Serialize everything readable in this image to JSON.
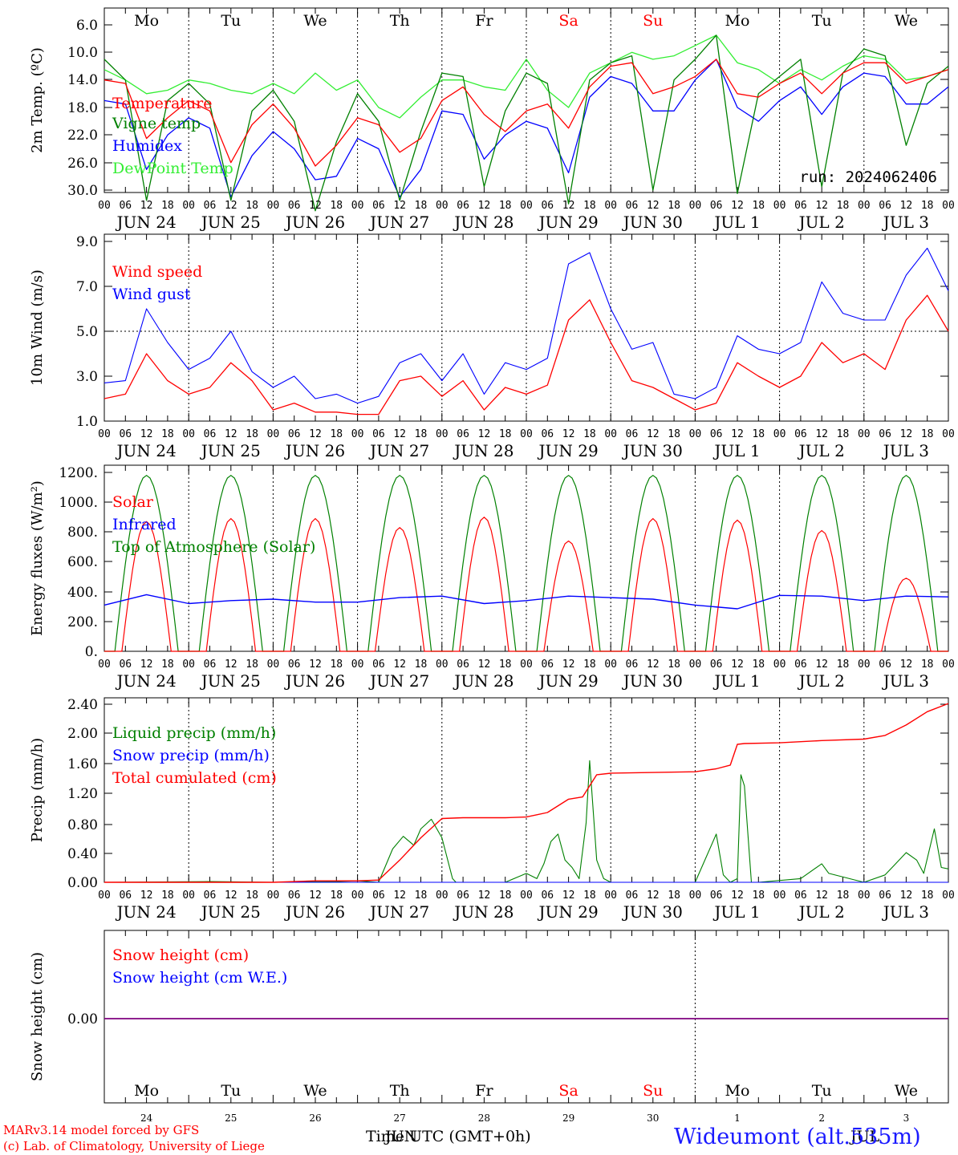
{
  "dates": [
    "JUN 24",
    "JUN 25",
    "JUN 26",
    "JUN 27",
    "JUN 28",
    "JUN 29",
    "JUN 30",
    "JUL  1",
    "JUL  2",
    "JUL  3"
  ],
  "hour_ticks": [
    "00",
    "06",
    "12",
    "18"
  ],
  "weekdays": [
    {
      "label": "Mo",
      "color": "#000000"
    },
    {
      "label": "Tu",
      "color": "#000000"
    },
    {
      "label": "We",
      "color": "#000000"
    },
    {
      "label": "Th",
      "color": "#000000"
    },
    {
      "label": "Fr",
      "color": "#000000"
    },
    {
      "label": "Sa",
      "color": "#ff0000"
    },
    {
      "label": "Su",
      "color": "#ff0000"
    },
    {
      "label": "Mo",
      "color": "#000000"
    },
    {
      "label": "Tu",
      "color": "#000000"
    },
    {
      "label": "We",
      "color": "#000000"
    }
  ],
  "bottom_day_numbers": [
    "24",
    "25",
    "26",
    "27",
    "28",
    "29",
    "30",
    "1",
    "2",
    "3"
  ],
  "run_label": "run: 2024062406",
  "footer": {
    "model": "MARv3.14 model forced by GFS",
    "lab": "(c) Lab. of Climatology, University of Liege",
    "time_axis": "Time UTC (GMT+0h)",
    "month_overlap": "JUN",
    "month_overlap2": "JUL",
    "station": "Wideumont (alt.535m)"
  },
  "chart_data": [
    {
      "type": "line",
      "ylabel": "2m Temp. (ºC)",
      "yticks": [
        "6.0",
        "10.0",
        "14.0",
        "18.0",
        "22.0",
        "26.0",
        "30.0"
      ],
      "ylim": [
        6,
        32.5
      ],
      "x_unit": "hours since JUN 24 00 UTC",
      "series": [
        {
          "name": "Temperature",
          "color": "#ff0000",
          "x": [
            0,
            6,
            12,
            18,
            24,
            30,
            36,
            42,
            48,
            54,
            60,
            66,
            72,
            78,
            84,
            90,
            96,
            102,
            108,
            114,
            120,
            126,
            132,
            138,
            144,
            150,
            156,
            162,
            168,
            174,
            180,
            186,
            192,
            198,
            204,
            210,
            216,
            222,
            228,
            234,
            240
          ],
          "y": [
            14.0,
            14.5,
            22.5,
            19.5,
            17.0,
            18.5,
            26.0,
            20.5,
            17.5,
            21.0,
            26.5,
            23.5,
            19.5,
            20.5,
            24.5,
            22.5,
            17.0,
            15.0,
            19.0,
            21.5,
            18.5,
            17.5,
            21.0,
            15.0,
            12.0,
            11.5,
            16.0,
            15.0,
            13.5,
            11.0,
            16.0,
            16.5,
            14.5,
            13.0,
            16.0,
            13.0,
            11.5,
            11.5,
            14.5,
            13.5,
            12.5
          ]
        },
        {
          "name": "Vigne temp",
          "color": "#008000",
          "x": [
            0,
            6,
            12,
            18,
            24,
            30,
            36,
            42,
            48,
            54,
            60,
            66,
            72,
            78,
            84,
            90,
            96,
            102,
            108,
            114,
            120,
            126,
            132,
            138,
            144,
            150,
            156,
            162,
            168,
            174,
            180,
            186,
            192,
            198,
            204,
            210,
            216,
            222,
            228,
            234,
            240
          ],
          "y": [
            11.0,
            14.0,
            31.5,
            17.0,
            14.5,
            17.5,
            31.5,
            18.5,
            15.5,
            20.0,
            33.0,
            23.0,
            16.0,
            20.0,
            31.5,
            21.5,
            13.0,
            13.5,
            29.5,
            18.5,
            13.0,
            14.5,
            32.0,
            14.0,
            11.5,
            10.5,
            30.0,
            14.0,
            11.0,
            7.5,
            30.5,
            16.0,
            13.5,
            11.0,
            29.5,
            13.0,
            9.5,
            10.5,
            23.5,
            14.5,
            12.0
          ]
        },
        {
          "name": "Humidex",
          "color": "#0000ff",
          "x": [
            0,
            6,
            12,
            18,
            24,
            30,
            36,
            42,
            48,
            54,
            60,
            66,
            72,
            78,
            84,
            90,
            96,
            102,
            108,
            114,
            120,
            126,
            132,
            138,
            144,
            150,
            156,
            162,
            168,
            174,
            180,
            186,
            192,
            198,
            204,
            210,
            216,
            222,
            228,
            234,
            240
          ],
          "y": [
            17.0,
            17.5,
            27.0,
            22.0,
            19.5,
            21.0,
            31.0,
            25.0,
            21.5,
            24.0,
            28.5,
            28.0,
            22.5,
            24.0,
            31.0,
            27.0,
            18.5,
            19.0,
            25.5,
            22.0,
            20.0,
            21.0,
            27.5,
            16.5,
            13.5,
            14.5,
            18.5,
            18.5,
            14.0,
            11.0,
            18.0,
            20.0,
            17.0,
            15.0,
            19.0,
            15.0,
            13.0,
            13.5,
            17.5,
            17.5,
            15.0
          ]
        },
        {
          "name": "DewPoint Temp",
          "color": "#33ee33",
          "x": [
            0,
            6,
            12,
            18,
            24,
            30,
            36,
            42,
            48,
            54,
            60,
            66,
            72,
            78,
            84,
            90,
            96,
            102,
            108,
            114,
            120,
            126,
            132,
            138,
            144,
            150,
            156,
            162,
            168,
            174,
            180,
            186,
            192,
            198,
            204,
            210,
            216,
            222,
            228,
            234,
            240
          ],
          "y": [
            12.5,
            14.0,
            16.0,
            15.5,
            14.0,
            14.5,
            15.5,
            16.0,
            14.5,
            16.0,
            13.0,
            15.5,
            14.0,
            18.0,
            19.5,
            16.5,
            14.0,
            14.0,
            15.0,
            15.5,
            11.0,
            15.5,
            18.0,
            13.0,
            11.5,
            10.0,
            11.0,
            10.5,
            9.0,
            7.5,
            11.5,
            12.5,
            14.5,
            12.5,
            14.0,
            12.0,
            10.5,
            11.0,
            14.0,
            13.5,
            12.5
          ]
        }
      ]
    },
    {
      "type": "line",
      "ylabel": "10m Wind (m/s)",
      "yticks": [
        "1.0",
        "3.0",
        "5.0",
        "7.0",
        "9.0"
      ],
      "ylim": [
        1,
        9.1
      ],
      "dashed_reference": 5.0,
      "x_unit": "hours since JUN 24 00 UTC",
      "series": [
        {
          "name": "Wind speed",
          "color": "#ff0000",
          "x": [
            0,
            6,
            12,
            18,
            24,
            30,
            36,
            42,
            48,
            54,
            60,
            66,
            72,
            78,
            84,
            90,
            96,
            102,
            108,
            114,
            120,
            126,
            132,
            138,
            144,
            150,
            156,
            162,
            168,
            174,
            180,
            186,
            192,
            198,
            204,
            210,
            216,
            222,
            228,
            234,
            240
          ],
          "y": [
            2.0,
            2.2,
            4.0,
            2.8,
            2.2,
            2.5,
            3.6,
            2.8,
            1.5,
            1.8,
            1.4,
            1.4,
            1.3,
            1.3,
            2.8,
            3.0,
            2.1,
            2.8,
            1.5,
            2.5,
            2.2,
            2.6,
            5.5,
            6.4,
            4.5,
            2.8,
            2.5,
            2.0,
            1.5,
            1.8,
            3.6,
            3.0,
            2.5,
            3.0,
            4.5,
            3.6,
            4.0,
            3.3,
            5.5,
            6.6,
            5.0
          ]
        },
        {
          "name": "Wind gust",
          "color": "#0000ff",
          "x": [
            0,
            6,
            12,
            18,
            24,
            30,
            36,
            42,
            48,
            54,
            60,
            66,
            72,
            78,
            84,
            90,
            96,
            102,
            108,
            114,
            120,
            126,
            132,
            138,
            144,
            150,
            156,
            162,
            168,
            174,
            180,
            186,
            192,
            198,
            204,
            210,
            216,
            222,
            228,
            234,
            240
          ],
          "y": [
            2.7,
            2.8,
            6.0,
            4.5,
            3.3,
            3.8,
            5.0,
            3.2,
            2.5,
            3.0,
            2.0,
            2.2,
            1.8,
            2.1,
            3.6,
            4.0,
            2.8,
            4.0,
            2.2,
            3.6,
            3.3,
            3.8,
            8.0,
            8.5,
            6.0,
            4.2,
            4.5,
            2.2,
            2.0,
            2.5,
            4.8,
            4.2,
            4.0,
            4.5,
            7.2,
            5.8,
            5.5,
            5.5,
            7.5,
            8.7,
            6.8
          ]
        }
      ]
    },
    {
      "type": "line",
      "ylabel": "Energy fluxes (W/m²)",
      "yticks": [
        "0.",
        "200.",
        "400.",
        "600.",
        "800.",
        "1000.",
        "1200."
      ],
      "ylim": [
        0,
        1200
      ],
      "x_unit": "hours since JUN 24 00 UTC",
      "series": [
        {
          "name": "Solar",
          "color": "#ff0000",
          "daily_peak_wm2": [
            870,
            890,
            890,
            830,
            900,
            740,
            890,
            880,
            810,
            490
          ]
        },
        {
          "name": "Infrared",
          "color": "#0000ff",
          "x": [
            0,
            12,
            24,
            36,
            48,
            60,
            72,
            84,
            96,
            108,
            120,
            132,
            144,
            156,
            168,
            180,
            192,
            204,
            216,
            228,
            240
          ],
          "y": [
            310,
            380,
            320,
            340,
            350,
            330,
            330,
            360,
            370,
            320,
            340,
            370,
            360,
            350,
            310,
            285,
            375,
            370,
            340,
            370,
            365
          ]
        },
        {
          "name": "Top of Atmosphere (Solar)",
          "color": "#008000",
          "daily_peak_wm2": [
            1180,
            1180,
            1180,
            1180,
            1180,
            1180,
            1180,
            1180,
            1180,
            1180
          ]
        }
      ]
    },
    {
      "type": "line",
      "ylabel": "Precip (mm/h)",
      "yticks": [
        "0.00",
        "0.40",
        "0.80",
        "1.20",
        "1.60",
        "2.00",
        "2.40"
      ],
      "ylim": [
        0,
        2.45
      ],
      "x_unit": "hours since JUN 24 00 UTC",
      "series": [
        {
          "name": "Liquid precip (mm/h)",
          "color": "#008000",
          "x": [
            0,
            30,
            48,
            66,
            72,
            78,
            82,
            85,
            88,
            90,
            93,
            96,
            99,
            100,
            114,
            118,
            120,
            123,
            125,
            127,
            129,
            131,
            133,
            135,
            137,
            138,
            140,
            142,
            144,
            168,
            174,
            176,
            178,
            180,
            181,
            182,
            184,
            186,
            198,
            204,
            206,
            216,
            222,
            225,
            228,
            231,
            233,
            236,
            238,
            240
          ],
          "y": [
            0,
            0.01,
            0,
            0.01,
            0.02,
            0,
            0.45,
            0.62,
            0.5,
            0.72,
            0.85,
            0.6,
            0.05,
            0,
            0,
            0.08,
            0.12,
            0.05,
            0.25,
            0.55,
            0.65,
            0.3,
            0.2,
            0.05,
            0.8,
            1.64,
            0.3,
            0.05,
            0,
            0,
            0.65,
            0.1,
            0,
            0.05,
            1.45,
            1.3,
            0,
            0,
            0.05,
            0.25,
            0.12,
            0,
            0.1,
            0.25,
            0.4,
            0.3,
            0.12,
            0.72,
            0.2,
            0.18
          ]
        },
        {
          "name": "Snow precip (mm/h)",
          "color": "#0000ff",
          "x": [
            0,
            240
          ],
          "y": [
            0,
            0
          ]
        },
        {
          "name": "Total cumulated (cm)",
          "color": "#ff0000",
          "x": [
            0,
            48,
            60,
            72,
            78,
            84,
            90,
            96,
            102,
            108,
            114,
            120,
            126,
            132,
            136,
            138,
            140,
            144,
            168,
            174,
            178,
            180,
            182,
            192,
            204,
            216,
            222,
            228,
            234,
            240
          ],
          "y": [
            0,
            0,
            0.02,
            0.02,
            0.03,
            0.3,
            0.6,
            0.86,
            0.87,
            0.87,
            0.87,
            0.88,
            0.94,
            1.12,
            1.15,
            1.3,
            1.45,
            1.47,
            1.49,
            1.53,
            1.58,
            1.86,
            1.87,
            1.88,
            1.91,
            1.93,
            1.98,
            2.12,
            2.3,
            2.41
          ]
        }
      ]
    },
    {
      "type": "line",
      "ylabel": "Snow height (cm)",
      "yticks": [
        "0.00"
      ],
      "x_unit": "hours since JUN 24 00 UTC",
      "series": [
        {
          "name": "Snow height (cm)",
          "color": "#ff0000",
          "x": [
            0,
            240
          ],
          "y": [
            0,
            0
          ]
        },
        {
          "name": "Snow height (cm W.E.)",
          "color": "#0000ff",
          "x": [
            0,
            240
          ],
          "y": [
            0,
            0
          ]
        }
      ]
    }
  ]
}
